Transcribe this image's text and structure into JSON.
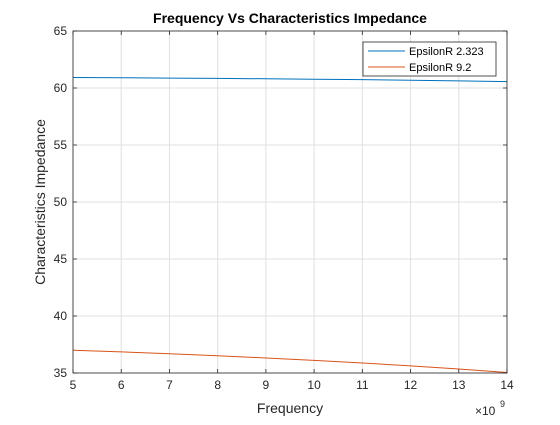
{
  "chart_data": {
    "type": "line",
    "title": "Frequency Vs Characteristics Impedance",
    "xlabel": "Frequency",
    "ylabel": "Characteristics Impedance",
    "x_exponent_label": "×10",
    "x_exponent_power": "9",
    "xlim": [
      5,
      14
    ],
    "ylim": [
      35,
      65
    ],
    "xticks": [
      5,
      6,
      7,
      8,
      9,
      10,
      11,
      12,
      13,
      14
    ],
    "yticks": [
      35,
      40,
      45,
      50,
      55,
      60,
      65
    ],
    "grid": true,
    "legend_position": "top-right",
    "x": [
      5,
      6,
      7,
      8,
      9,
      10,
      11,
      12,
      13,
      14
    ],
    "series": [
      {
        "name": "EpsilonR 2.323",
        "color": "#0072BD",
        "values": [
          60.92,
          60.9,
          60.87,
          60.84,
          60.81,
          60.77,
          60.73,
          60.68,
          60.62,
          60.56
        ]
      },
      {
        "name": "EpsilonR 9.2",
        "color": "#D95319",
        "values": [
          37.0,
          36.85,
          36.69,
          36.51,
          36.32,
          36.11,
          35.88,
          35.63,
          35.35,
          35.04
        ]
      }
    ]
  }
}
